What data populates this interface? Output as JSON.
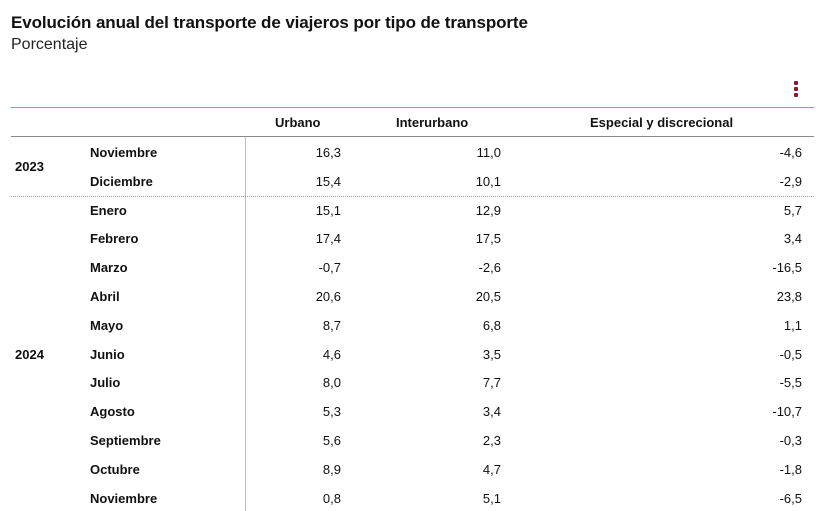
{
  "title": "Evolución anual del transporte de viajeros por tipo de transporte",
  "subtitle": "Porcentaje",
  "menu_icon": "vertical-ellipsis-icon",
  "accent_color": "#8a1c2e",
  "columns": [
    "Urbano",
    "Interurbano",
    "Especial y discrecional"
  ],
  "groups": [
    {
      "year": "2023",
      "rows": [
        {
          "month": "Noviembre",
          "values": [
            "16,3",
            "11,0",
            "-4,6"
          ]
        },
        {
          "month": "Diciembre",
          "values": [
            "15,4",
            "10,1",
            "-2,9"
          ]
        }
      ]
    },
    {
      "year": "2024",
      "rows": [
        {
          "month": "Enero",
          "values": [
            "15,1",
            "12,9",
            "5,7"
          ]
        },
        {
          "month": "Febrero",
          "values": [
            "17,4",
            "17,5",
            "3,4"
          ]
        },
        {
          "month": "Marzo",
          "values": [
            "-0,7",
            "-2,6",
            "-16,5"
          ]
        },
        {
          "month": "Abril",
          "values": [
            "20,6",
            "20,5",
            "23,8"
          ]
        },
        {
          "month": "Mayo",
          "values": [
            "8,7",
            "6,8",
            "1,1"
          ]
        },
        {
          "month": "Junio",
          "values": [
            "4,6",
            "3,5",
            "-0,5"
          ]
        },
        {
          "month": "Julio",
          "values": [
            "8,0",
            "7,7",
            "-5,5"
          ]
        },
        {
          "month": "Agosto",
          "values": [
            "5,3",
            "3,4",
            "-10,7"
          ]
        },
        {
          "month": "Septiembre",
          "values": [
            "5,6",
            "2,3",
            "-0,3"
          ]
        },
        {
          "month": "Octubre",
          "values": [
            "8,9",
            "4,7",
            "-1,8"
          ]
        },
        {
          "month": "Noviembre",
          "values": [
            "0,8",
            "5,1",
            "-6,5"
          ]
        }
      ]
    }
  ]
}
